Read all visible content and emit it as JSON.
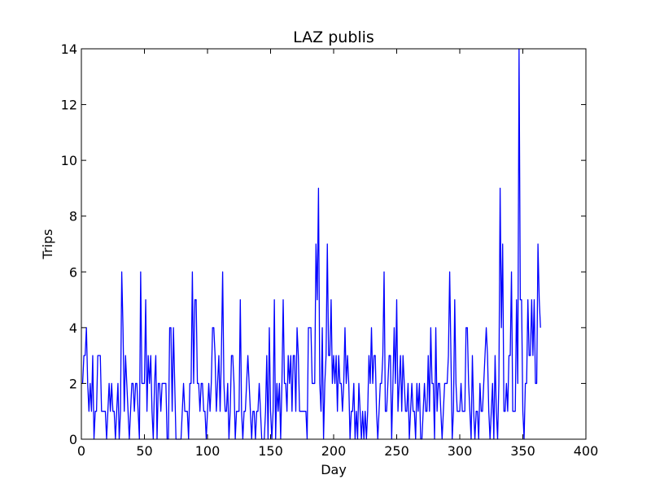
{
  "chart_data": {
    "type": "line",
    "title": "LAZ publis",
    "xlabel": "Day",
    "ylabel": "Trips",
    "xlim": [
      0,
      400
    ],
    "ylim": [
      0,
      14
    ],
    "xticks": [
      0,
      50,
      100,
      150,
      200,
      250,
      300,
      350,
      400
    ],
    "yticks": [
      0,
      2,
      4,
      6,
      8,
      10,
      12,
      14
    ],
    "grid": false,
    "legend": "none",
    "line_color": "#0000ff",
    "series": [
      {
        "name": "",
        "x_start": 1,
        "values": [
          2,
          3,
          3,
          4,
          2,
          1,
          2,
          1,
          3,
          0,
          1,
          1,
          3,
          3,
          3,
          1,
          1,
          1,
          1,
          0,
          1,
          2,
          1,
          2,
          1,
          1,
          0,
          1,
          2,
          0,
          1,
          6,
          4,
          1,
          3,
          2,
          1,
          0,
          1,
          2,
          2,
          1,
          2,
          2,
          1,
          0,
          6,
          2,
          2,
          2,
          5,
          1,
          3,
          2,
          3,
          1,
          0,
          2,
          3,
          0,
          2,
          2,
          1,
          2,
          2,
          2,
          2,
          0,
          0,
          4,
          4,
          1,
          4,
          2,
          0,
          0,
          0,
          0,
          0,
          1,
          2,
          1,
          1,
          1,
          0,
          2,
          2,
          6,
          2,
          5,
          5,
          2,
          2,
          1,
          2,
          2,
          1,
          1,
          0,
          1,
          2,
          1,
          2,
          4,
          4,
          3,
          1,
          2,
          3,
          1,
          3,
          6,
          2,
          1,
          1,
          2,
          0,
          1,
          3,
          3,
          2,
          0,
          1,
          1,
          1,
          5,
          1,
          0,
          1,
          1,
          2,
          3,
          2,
          1,
          0,
          1,
          1,
          0,
          1,
          1,
          2,
          1,
          0,
          0,
          0,
          1,
          3,
          0,
          4,
          1,
          0,
          1,
          5,
          0,
          2,
          1,
          2,
          0,
          2,
          5,
          2,
          2,
          1,
          3,
          2,
          3,
          1,
          3,
          3,
          1,
          4,
          3,
          1,
          1,
          1,
          1,
          1,
          1,
          0,
          4,
          4,
          4,
          2,
          2,
          2,
          7,
          5,
          9,
          2,
          1,
          4,
          0,
          2,
          3,
          7,
          3,
          3,
          5,
          2,
          3,
          2,
          3,
          1,
          3,
          2,
          2,
          1,
          2,
          4,
          2,
          3,
          2,
          0,
          1,
          1,
          2,
          0,
          1,
          0,
          2,
          1,
          0,
          1,
          0,
          1,
          0,
          1,
          3,
          2,
          4,
          2,
          3,
          3,
          1,
          0,
          1,
          2,
          2,
          3,
          6,
          1,
          1,
          2,
          3,
          3,
          0,
          2,
          4,
          2,
          5,
          1,
          2,
          3,
          1,
          3,
          2,
          1,
          1,
          2,
          0,
          1,
          2,
          1,
          1,
          0,
          2,
          1,
          2,
          0,
          0,
          1,
          2,
          1,
          1,
          3,
          1,
          4,
          2,
          2,
          0,
          4,
          1,
          2,
          2,
          1,
          0,
          1,
          2,
          2,
          2,
          3,
          6,
          3,
          0,
          1,
          5,
          2,
          1,
          1,
          1,
          2,
          1,
          1,
          1,
          4,
          4,
          2,
          1,
          0,
          3,
          1,
          0,
          1,
          1,
          0,
          2,
          1,
          1,
          2,
          3,
          4,
          3,
          1,
          0,
          1,
          2,
          0,
          3,
          1,
          0,
          2,
          9,
          4,
          7,
          1,
          1,
          2,
          1,
          3,
          3,
          6,
          1,
          1,
          1,
          5,
          2,
          14,
          5,
          5,
          1,
          0,
          2,
          2,
          5,
          3,
          3,
          5,
          3,
          5,
          2,
          2,
          7,
          5,
          4
        ]
      }
    ]
  }
}
